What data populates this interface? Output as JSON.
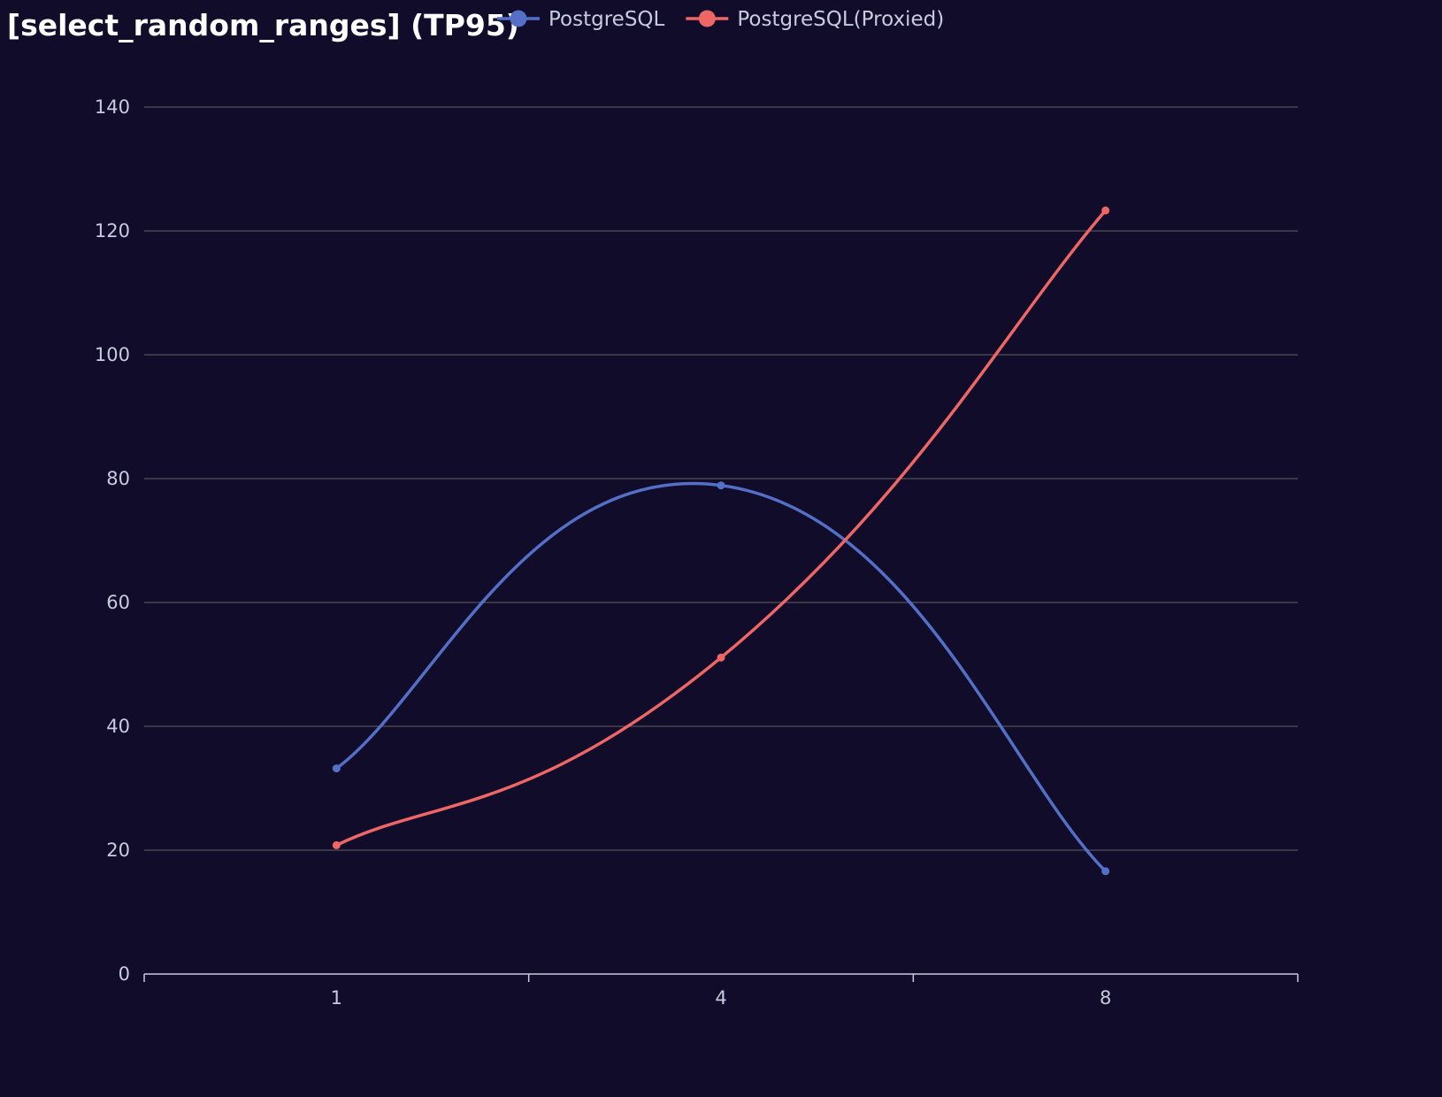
{
  "chart_data": {
    "type": "line",
    "title": "[select_random_ranges] (TP95)",
    "categories": [
      "1",
      "4",
      "8"
    ],
    "series": [
      {
        "name": "PostgreSQL",
        "values": [
          33.2,
          78.9,
          16.6
        ],
        "color": "#5470c6"
      },
      {
        "name": "PostgreSQL(Proxied)",
        "values": [
          20.8,
          51.1,
          123.3
        ],
        "color": "#ee6666"
      }
    ],
    "yticks": [
      "0",
      "20",
      "40",
      "60",
      "80",
      "100",
      "120",
      "140"
    ],
    "ylim": [
      0,
      140
    ],
    "grid": true,
    "smooth": true,
    "legend_position": "top"
  },
  "colors": {
    "background": "#100c2a",
    "grid": "#484753",
    "axis": "#c9c9e0",
    "text": "#c9c9e0",
    "title": "#ffffff"
  }
}
